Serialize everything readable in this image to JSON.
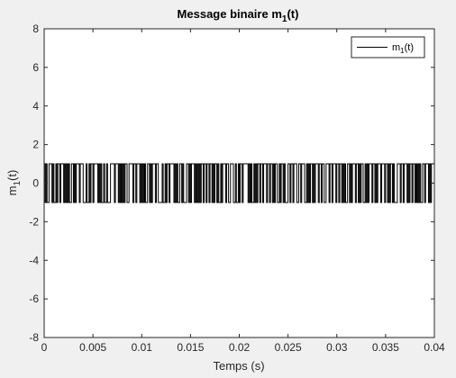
{
  "chart_data": {
    "type": "line",
    "title_main": "Message binaire m",
    "title_sub": "1",
    "title_tail": "(t)",
    "xlabel": "Temps (s)",
    "ylabel_main": "m",
    "ylabel_sub": "1",
    "ylabel_tail": "(t)",
    "xlim": [
      0,
      0.04
    ],
    "ylim": [
      -8,
      8
    ],
    "xticks": [
      0,
      0.005,
      0.01,
      0.015,
      0.02,
      0.025,
      0.03,
      0.035,
      0.04
    ],
    "xtick_labels": [
      "0",
      "0.005",
      "0.01",
      "0.015",
      "0.02",
      "0.025",
      "0.03",
      "0.035",
      "0.04"
    ],
    "yticks": [
      -8,
      -6,
      -4,
      -2,
      0,
      2,
      4,
      6,
      8
    ],
    "ytick_labels": [
      "-8",
      "-6",
      "-4",
      "-2",
      "0",
      "2",
      "4",
      "6",
      "8"
    ],
    "grid": false,
    "legend_position": "top-right",
    "series": [
      {
        "name_main": "m",
        "name_sub": "1",
        "name_tail": "(t)",
        "color": "#000000",
        "bit_duration": 0.0001,
        "levels": [
          1,
          -1
        ],
        "bits": "1010011101001011011101010100110101110111000100101101111010100100100011110111010101011001111011011101010100110101110110000100101101111010100110100011010111010101011011011011010110100101110110011100100101101111101010010101101101110110110101100101101000110110111001101110010101101011101101100111011011101101101010011010111011010110010101110110101110111011010110100011101101110101101101010100110111010111"
      }
    ]
  },
  "colors": {
    "figure_background": "#f0f0f0",
    "axes_background": "#ffffff",
    "line": "#000000"
  }
}
